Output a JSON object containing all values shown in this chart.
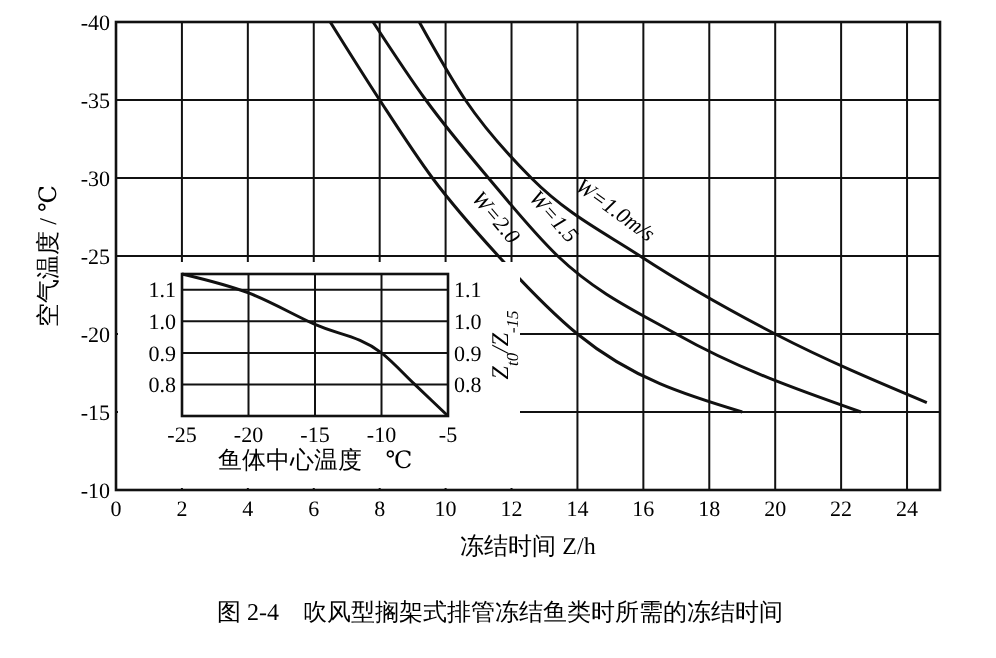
{
  "chart_data": [
    {
      "type": "line",
      "title": "图 2-4　吹风型搁架式排管冻结鱼类时所需的冻结时间",
      "xlabel": "冻结时间 Z/h",
      "ylabel": "空气温度 / ℃",
      "xlim": [
        0,
        25
      ],
      "xticks": [
        0,
        2,
        4,
        6,
        8,
        10,
        12,
        14,
        16,
        18,
        20,
        22,
        24
      ],
      "ylim": [
        -10,
        -40
      ],
      "yticks": [
        -40,
        -35,
        -30,
        -25,
        -20,
        -15,
        -10
      ],
      "grid": true,
      "line_style": "solid",
      "marker": "none",
      "series": [
        {
          "name": "W=1.0m/s",
          "color": "#111111",
          "x": [
            9.2,
            10.6,
            12.6,
            15.9,
            20.0,
            24.6
          ],
          "values": [
            -40,
            -35,
            -30,
            -25,
            -20,
            -15.6
          ]
        },
        {
          "name": "W=1.5",
          "color": "#111111",
          "x": [
            7.8,
            9.4,
            11.3,
            13.4,
            17.0,
            22.6
          ],
          "values": [
            -40,
            -35,
            -30,
            -25,
            -20,
            -15
          ]
        },
        {
          "name": "W=2.0",
          "color": "#111111",
          "x": [
            6.5,
            8.0,
            9.6,
            11.6,
            14.0,
            19.0
          ],
          "values": [
            -40,
            -35,
            -30,
            -25,
            -20,
            -15
          ]
        }
      ]
    },
    {
      "type": "line",
      "xlabel": "鱼体中心温度　℃",
      "y2label": "Z$_{t0}$/Z$_{-15}$",
      "xlim": [
        -25,
        -5
      ],
      "xticks": [
        -25,
        -20,
        -15,
        -10,
        -5
      ],
      "ylim": [
        0.7,
        1.15
      ],
      "yticks": [
        0.8,
        0.9,
        {
          "value": 1,
          "label": "1.0"
        },
        1.1
      ],
      "y2lim": [
        0.7,
        1.15
      ],
      "y2ticks": [
        0.8,
        0.9,
        {
          "value": 1,
          "label": "1.0"
        },
        1.1
      ],
      "grid": true,
      "marker": "none",
      "series": [
        {
          "color": "#111111",
          "x": [
            -25,
            -20,
            -15,
            -10,
            -7.5,
            -5
          ],
          "values": [
            1.15,
            1.09,
            0.99,
            0.9,
            0.8,
            0.7
          ]
        }
      ]
    }
  ]
}
